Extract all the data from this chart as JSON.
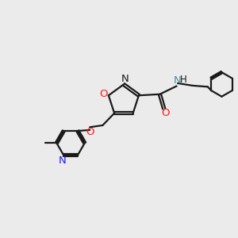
{
  "bg_color": "#ebebeb",
  "bond_color": "#1a1a1a",
  "N_color": "#1a1aff",
  "O_color": "#ff1a1a",
  "N_teal_color": "#4a9090",
  "line_width": 1.6,
  "font_size": 9.5,
  "figsize": [
    3.0,
    3.0
  ],
  "dpi": 100,
  "xlim": [
    0,
    10
  ],
  "ylim": [
    0,
    10
  ]
}
